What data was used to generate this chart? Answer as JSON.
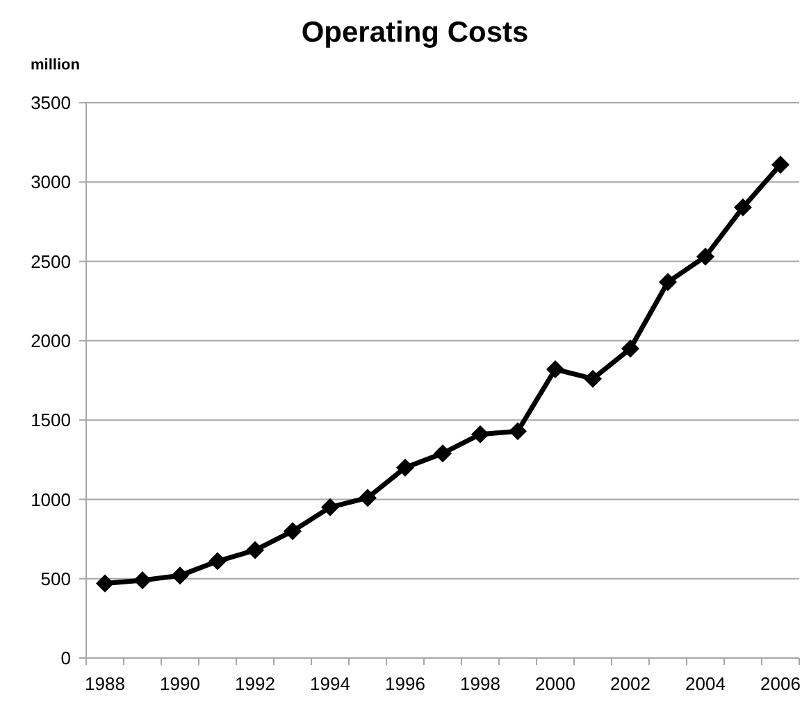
{
  "chart_data": {
    "type": "line",
    "title": "Operating Costs",
    "ylabel": "million",
    "categories": [
      "1988",
      null,
      "1990",
      null,
      "1992",
      null,
      "1994",
      null,
      "1996",
      null,
      "1998",
      null,
      "2000",
      null,
      "2002",
      null,
      "2004",
      null,
      "2006"
    ],
    "series": [
      {
        "color": "#000000",
        "values": [
          470,
          490,
          520,
          610,
          680,
          800,
          950,
          1010,
          1200,
          1290,
          1410,
          1430,
          1820,
          1760,
          1950,
          2370,
          2530,
          2840,
          3110
        ]
      }
    ],
    "ylim": [
      0,
      3500
    ],
    "yticks": [
      0,
      500,
      1000,
      1500,
      2000,
      2500,
      3000,
      3500
    ],
    "grid": "y",
    "marker": "diamond",
    "line_style": "solid"
  }
}
